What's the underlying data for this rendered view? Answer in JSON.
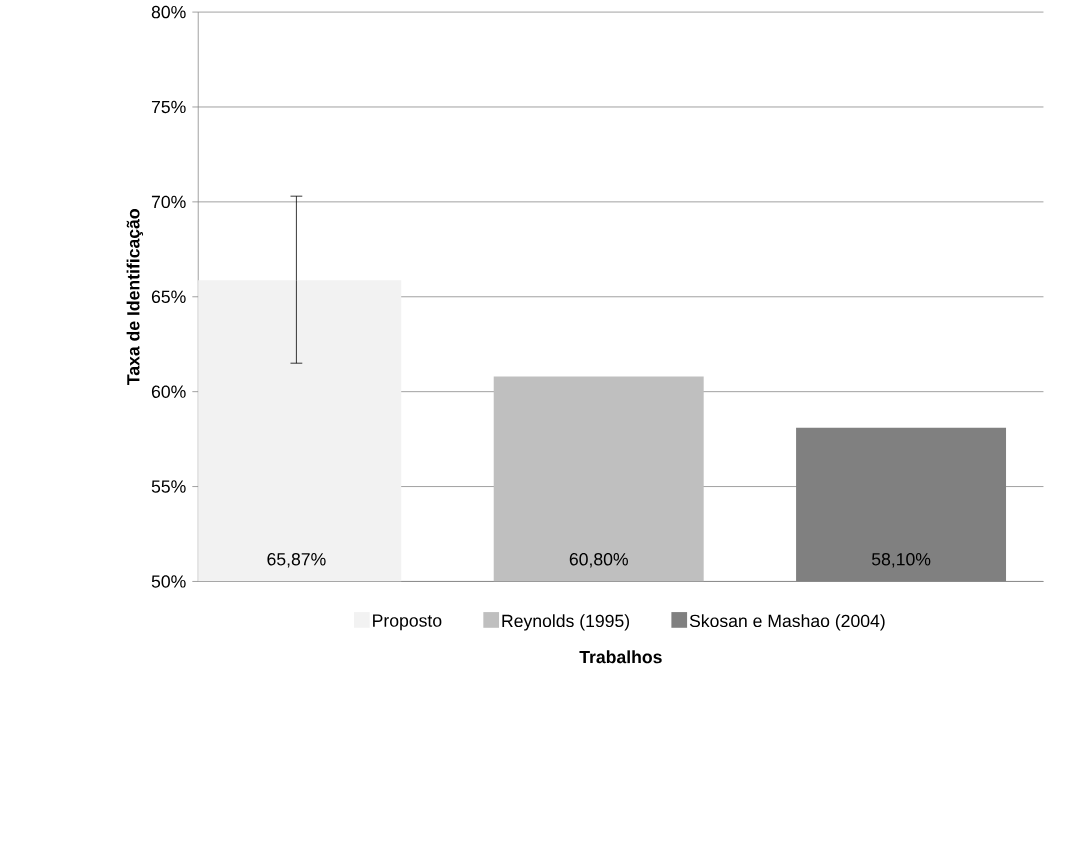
{
  "chart_data": {
    "type": "bar",
    "categories": [
      null
    ],
    "series": [
      {
        "name": "Proposto",
        "color": "#f2f2f2",
        "values": [
          65.87
        ],
        "value_labels": [
          "65,87%"
        ],
        "errors": [
          [
            61.5,
            70.3
          ]
        ]
      },
      {
        "name": "Reynolds (1995)",
        "color": "#bfbfbf",
        "values": [
          60.8
        ],
        "value_labels": [
          "60,80%"
        ]
      },
      {
        "name": "Skosan e Mashao (2004)",
        "color": "#808080",
        "values": [
          58.1
        ],
        "value_labels": [
          "58,10%"
        ]
      }
    ],
    "xlabel": "Trabalhos",
    "ylabel": "Taxa de Identificação",
    "ylim": [
      50,
      80
    ],
    "yticks": [
      {
        "value": 50,
        "label": "50%"
      },
      {
        "value": 55,
        "label": "55%"
      },
      {
        "value": 60,
        "label": "60%"
      },
      {
        "value": 65,
        "label": "65%"
      },
      {
        "value": 70,
        "label": "70%"
      },
      {
        "value": 75,
        "label": "75%"
      },
      {
        "value": 80,
        "label": "80%"
      }
    ],
    "grid": "y",
    "legend": "bottom"
  }
}
